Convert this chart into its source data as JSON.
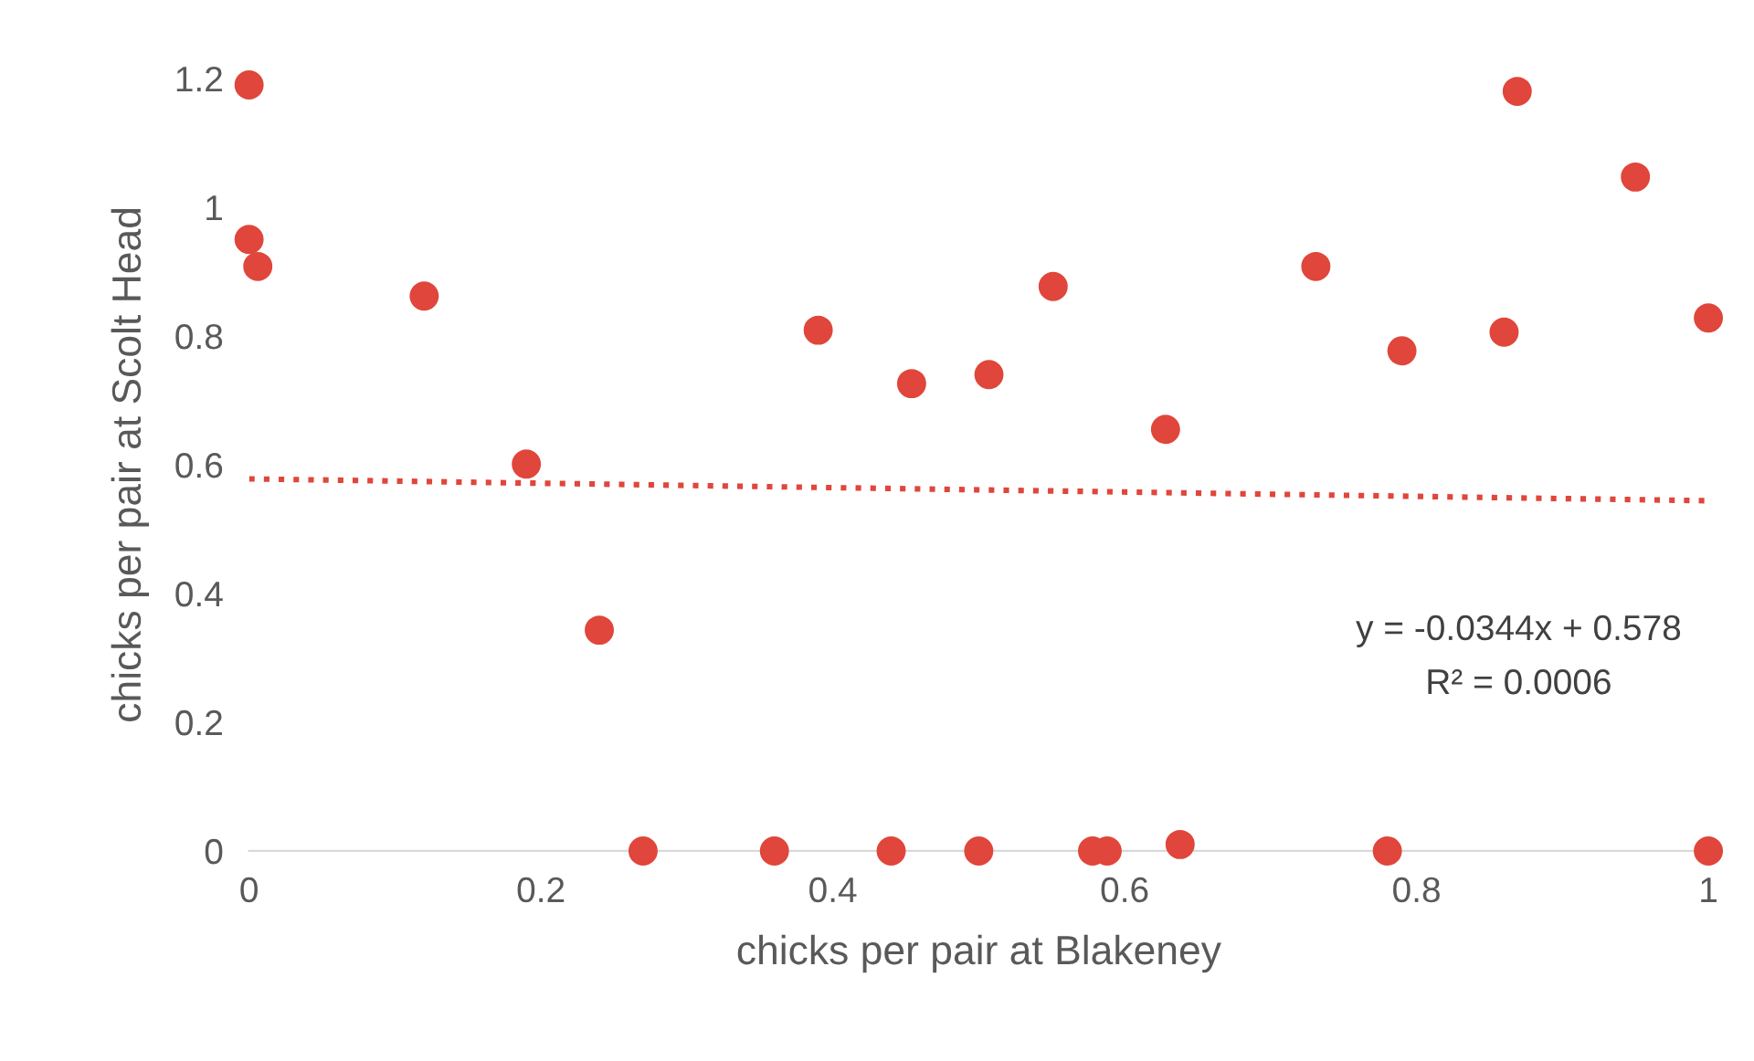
{
  "chart_data": {
    "type": "scatter",
    "xlabel": "chicks per pair at Blakeney",
    "ylabel": "chicks per pair at Scolt Head",
    "xlim": [
      0,
      1
    ],
    "ylim": [
      0,
      1.2
    ],
    "xticks": [
      0,
      0.2,
      0.4,
      0.6,
      0.8,
      1
    ],
    "yticks": [
      0,
      0.2,
      0.4,
      0.6,
      0.8,
      1,
      1.2
    ],
    "grid": false,
    "legend": false,
    "series": [
      {
        "color": "#e0463b",
        "marker": "circle",
        "x": [
          0,
          0,
          0.006,
          0.12,
          0.19,
          0.24,
          0.27,
          0.36,
          0.39,
          0.44,
          0.454,
          0.5,
          0.507,
          0.551,
          0.578,
          0.588,
          0.628,
          0.638,
          0.731,
          0.78,
          0.79,
          0.86,
          0.869,
          0.95,
          1.0,
          1.0
        ],
        "values": [
          1.19,
          0.95,
          0.908,
          0.862,
          0.601,
          0.343,
          0,
          0,
          0.809,
          0,
          0.726,
          0,
          0.74,
          0.877,
          0,
          0,
          0.655,
          0.01,
          0.908,
          0,
          0.777,
          0.806,
          1.18,
          1.047,
          0.828,
          0
        ]
      },
      {
        "type": "line",
        "color": "#e0463b",
        "line_style": "dotted",
        "x": [
          0,
          1
        ],
        "values": [
          0.578,
          0.544
        ]
      }
    ],
    "annotations": [
      "y = -0.0344x + 0.578",
      "R² = 0.0006"
    ]
  }
}
